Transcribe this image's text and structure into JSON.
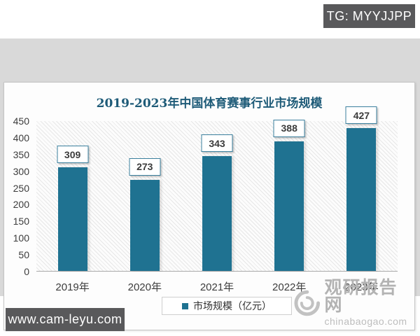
{
  "page": {
    "tg_badge_text": "TG: MYYJJPP",
    "url_badge_text": "www.cam-leyu.com"
  },
  "watermark": {
    "logo_icon": "swirl-logo",
    "name": "观研报告网",
    "domain": "chinabaogao.com"
  },
  "chart_data": {
    "type": "bar",
    "title": "2019-2023年中国体育赛事行业市场规模",
    "categories": [
      "2019年",
      "2020年",
      "2021年",
      "2022年",
      "2023年"
    ],
    "values": [
      309,
      273,
      343,
      388,
      427
    ],
    "series_name": "市场规模（亿元）",
    "xlabel": "",
    "ylabel": "",
    "ylim": [
      0,
      450
    ],
    "ytick_step": 50,
    "yticks": [
      0,
      50,
      100,
      150,
      200,
      250,
      300,
      350,
      400,
      450
    ],
    "grid": false,
    "legend_position": "bottom",
    "data_labels": true,
    "colors": {
      "bar": "#1f7291",
      "title": "#1e5b78",
      "value_box_border": "#3a7f9d",
      "badge_background": "#59595b",
      "frame_background": "#d9d9d9",
      "watermark_gray": "#b3b3b3"
    }
  }
}
